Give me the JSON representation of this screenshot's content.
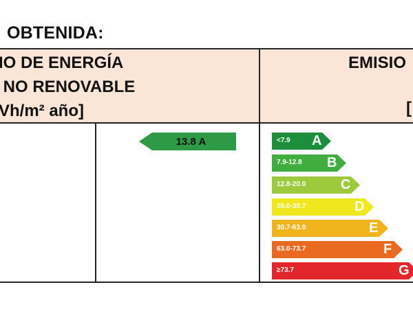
{
  "section_title": "OBTENIDA:",
  "header": {
    "left_lines": [
      "IO DE ENERGÍA",
      " NO RENOVABLE",
      "Vh/m² año]"
    ],
    "right_text": "EMISIO",
    "right_bracket": "["
  },
  "obtained": {
    "value": "13.8",
    "letter": "A",
    "label": "13.8 A",
    "color": "#2f9a46"
  },
  "scale": [
    {
      "range": "<7.9",
      "letter": "A",
      "color": "#1d8f3c"
    },
    {
      "range": "7.9-12.8",
      "letter": "B",
      "color": "#3fae3f"
    },
    {
      "range": "12.8-20.0",
      "letter": "C",
      "color": "#9cca3c"
    },
    {
      "range": "20.0-30.7",
      "letter": "D",
      "color": "#f0e81c"
    },
    {
      "range": "30.7-63.0",
      "letter": "E",
      "color": "#f2b41c"
    },
    {
      "range": "63.0-73.7",
      "letter": "F",
      "color": "#ea6a22"
    },
    {
      "range": "≥73.7",
      "letter": "G",
      "color": "#e3262a"
    }
  ]
}
